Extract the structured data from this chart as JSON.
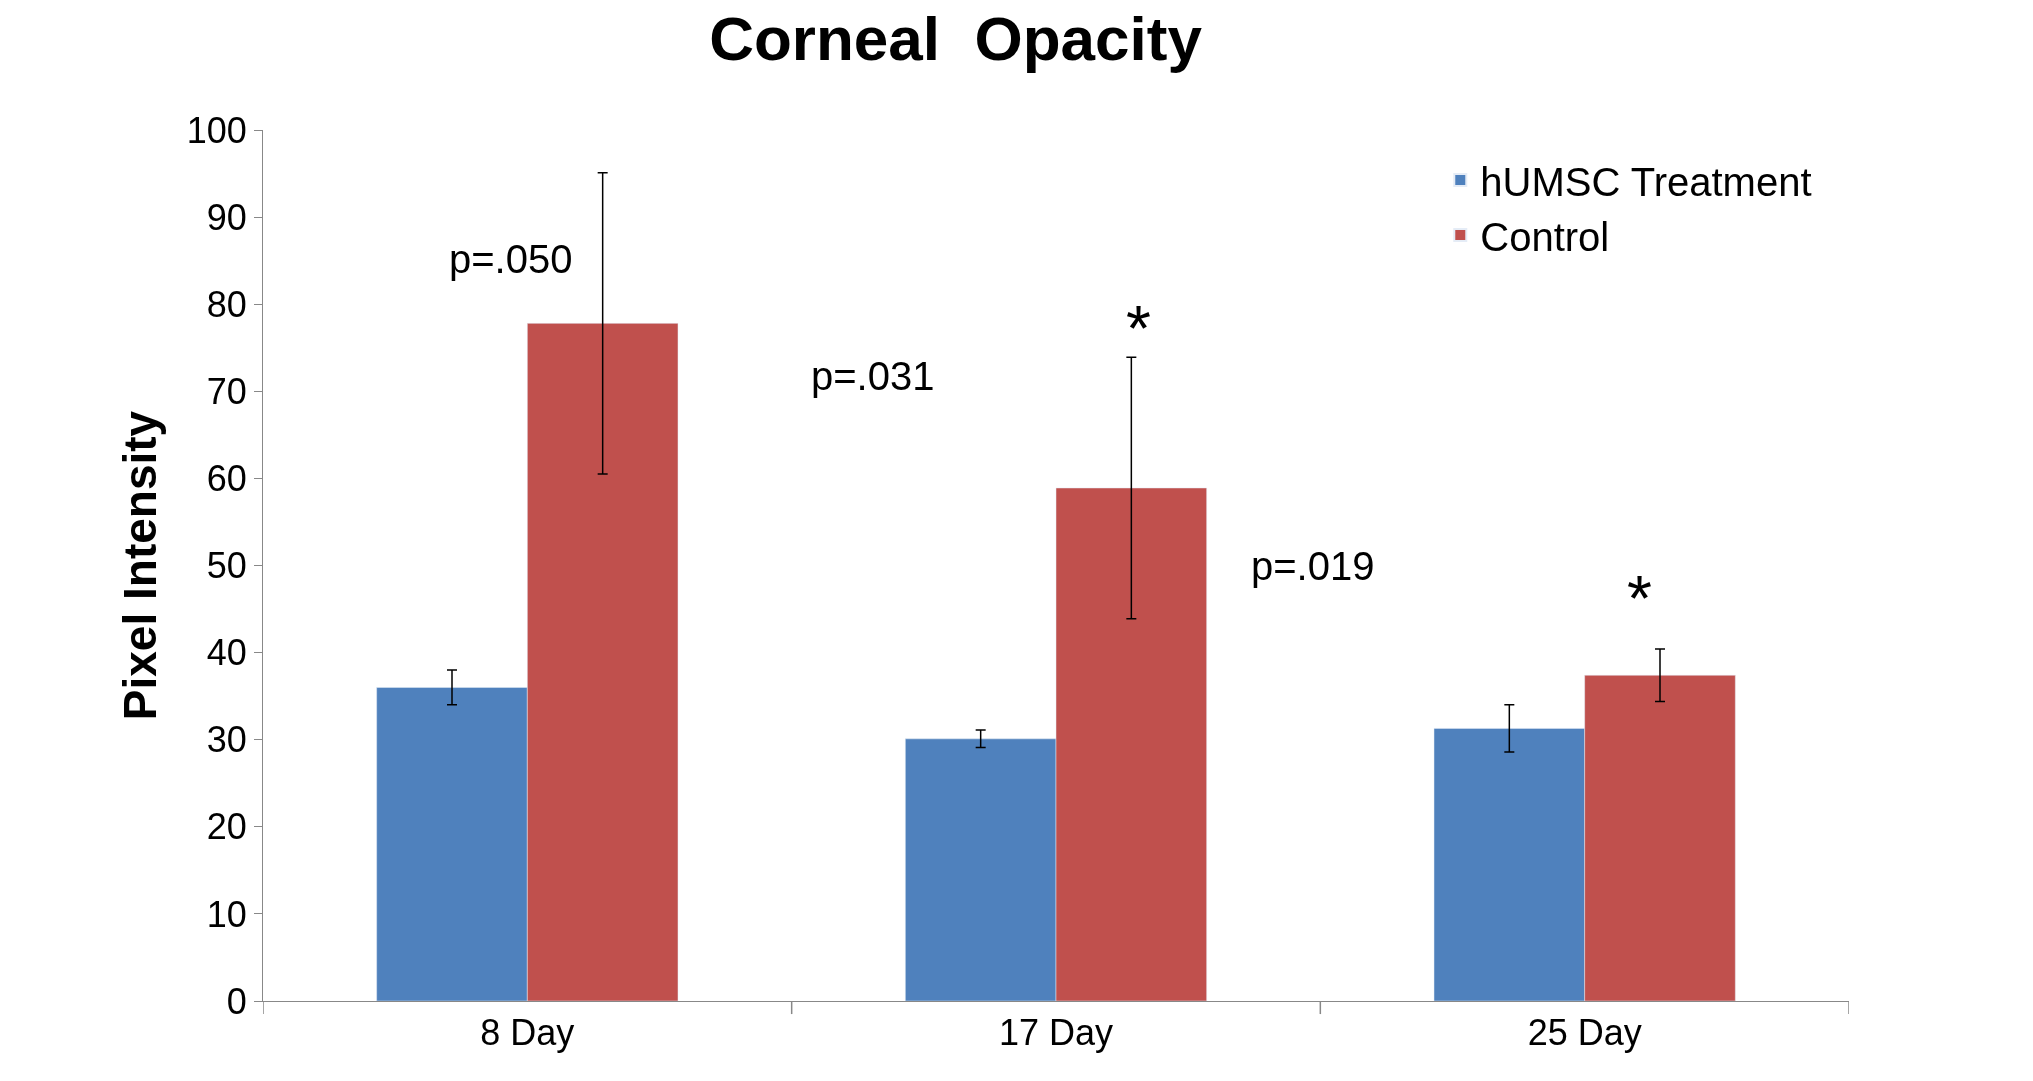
{
  "chart_data": {
    "type": "bar",
    "title": "Corneal  Opacity",
    "ylabel": "Pixel Intensity",
    "categories": [
      "8 Day",
      "17 Day",
      "25 Day"
    ],
    "series": [
      {
        "name": "hUMSC Treatment",
        "color": "#4f81bd",
        "values": [
          36,
          30.1,
          31.3
        ],
        "errors": [
          2,
          1,
          2.7
        ]
      },
      {
        "name": "Control",
        "color": "#c0504d",
        "values": [
          77.8,
          58.9,
          37.4
        ],
        "errors": [
          17.3,
          15,
          3
        ]
      }
    ],
    "ylim": [
      0,
      100
    ],
    "yticks": [
      0,
      10,
      20,
      30,
      40,
      50,
      60,
      70,
      80,
      90,
      100
    ],
    "annotations": [
      "p=.050",
      "p=.031",
      "*",
      "p=.019",
      "*"
    ],
    "legend": "top right"
  }
}
